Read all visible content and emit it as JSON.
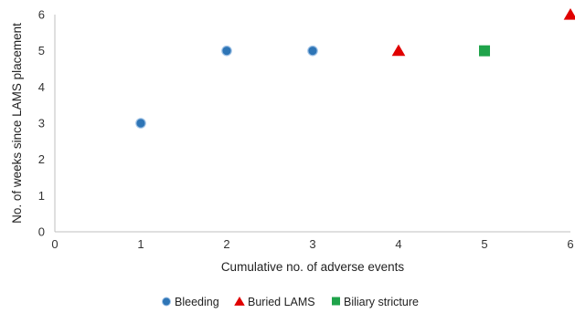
{
  "chart_data": {
    "type": "scatter",
    "title": "",
    "xlabel": "Cumulative no. of adverse events",
    "ylabel": "No. of weeks since LAMS placement",
    "xlim": [
      0,
      6
    ],
    "ylim": [
      0,
      6
    ],
    "xticks": [
      "0",
      "1",
      "2",
      "3",
      "4",
      "5",
      "6"
    ],
    "yticks": [
      "0",
      "1",
      "2",
      "3",
      "4",
      "5",
      "6"
    ],
    "grid": false,
    "legend_position": "bottom",
    "series": [
      {
        "name": "Bleeding",
        "marker": "circle",
        "color": "#2E75B6",
        "points": [
          {
            "x": 1,
            "y": 3
          },
          {
            "x": 2,
            "y": 5
          },
          {
            "x": 3,
            "y": 5
          }
        ]
      },
      {
        "name": "Buried LAMS",
        "marker": "triangle",
        "color": "#E00000",
        "points": [
          {
            "x": 4,
            "y": 5
          },
          {
            "x": 6,
            "y": 6
          }
        ]
      },
      {
        "name": "Biliary stricture",
        "marker": "square",
        "color": "#1FA34A",
        "points": [
          {
            "x": 5,
            "y": 5
          }
        ]
      }
    ]
  }
}
